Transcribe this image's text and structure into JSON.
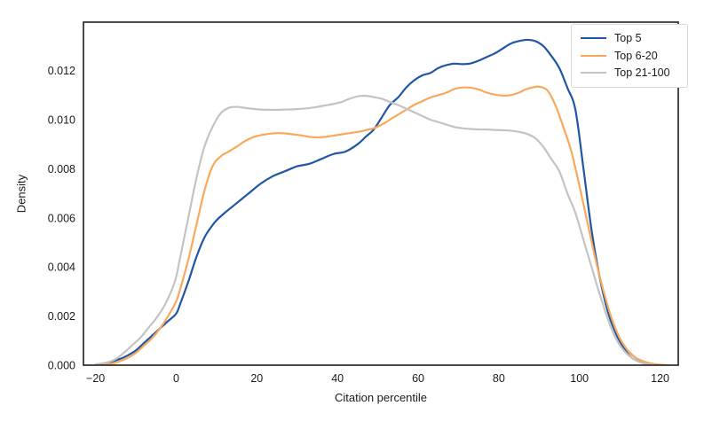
{
  "chart_data": {
    "type": "line",
    "subtype": "density-kde",
    "title": "",
    "xlabel": "Citation percentile",
    "ylabel": "Density",
    "grid": false,
    "legend_position": "upper right",
    "xlim": [
      -23,
      124.5
    ],
    "ylim": [
      0,
      0.01397
    ],
    "x_ticks": [
      -20,
      0,
      20,
      40,
      60,
      80,
      100,
      120
    ],
    "x_tick_labels": [
      "−20",
      "0",
      "20",
      "40",
      "60",
      "80",
      "100",
      "120"
    ],
    "y_ticks": [
      0,
      0.002,
      0.004,
      0.006,
      0.008,
      0.01,
      0.012
    ],
    "y_tick_labels": [
      "0.000",
      "0.002",
      "0.004",
      "0.006",
      "0.008",
      "0.010",
      "0.012"
    ],
    "axis_color": "#2b2b2b",
    "tick_text_color": "#1a1a1a",
    "series": [
      {
        "name": "Top 5",
        "color": "#2056a4",
        "points": [
          [
            -20,
            2e-05
          ],
          [
            -17,
            0.0001
          ],
          [
            -14,
            0.00025
          ],
          [
            -12,
            0.0004
          ],
          [
            -10,
            0.0006
          ],
          [
            -8,
            0.0009
          ],
          [
            -6,
            0.0012
          ],
          [
            -4,
            0.0015
          ],
          [
            -2,
            0.0018
          ],
          [
            0,
            0.0021
          ],
          [
            1,
            0.0025
          ],
          [
            3,
            0.0034
          ],
          [
            5,
            0.0044
          ],
          [
            7,
            0.0052
          ],
          [
            9,
            0.0057
          ],
          [
            10,
            0.0059
          ],
          [
            12,
            0.0062
          ],
          [
            15,
            0.0066
          ],
          [
            18,
            0.007
          ],
          [
            21,
            0.0074
          ],
          [
            24,
            0.0077
          ],
          [
            27,
            0.0079
          ],
          [
            30,
            0.0081
          ],
          [
            33,
            0.0082
          ],
          [
            36,
            0.0084
          ],
          [
            39,
            0.0086
          ],
          [
            42,
            0.0087
          ],
          [
            45,
            0.009
          ],
          [
            47,
            0.0093
          ],
          [
            49,
            0.0096
          ],
          [
            51,
            0.0101
          ],
          [
            53,
            0.0106
          ],
          [
            55,
            0.0109
          ],
          [
            57,
            0.0113
          ],
          [
            59,
            0.0116
          ],
          [
            61,
            0.0118
          ],
          [
            63,
            0.0119
          ],
          [
            65,
            0.0121
          ],
          [
            67,
            0.01222
          ],
          [
            69,
            0.01228
          ],
          [
            71,
            0.01226
          ],
          [
            73,
            0.01229
          ],
          [
            75,
            0.0124
          ],
          [
            77,
            0.01255
          ],
          [
            79,
            0.0127
          ],
          [
            81,
            0.0129
          ],
          [
            83,
            0.0131
          ],
          [
            85,
            0.0132
          ],
          [
            87,
            0.01325
          ],
          [
            89,
            0.0132
          ],
          [
            91,
            0.013
          ],
          [
            93,
            0.0126
          ],
          [
            95,
            0.0121
          ],
          [
            97,
            0.0113
          ],
          [
            99,
            0.0104
          ],
          [
            101,
            0.008
          ],
          [
            103,
            0.0055
          ],
          [
            105,
            0.0036
          ],
          [
            107,
            0.0022
          ],
          [
            109,
            0.0013
          ],
          [
            111,
            0.0007
          ],
          [
            113,
            0.0003
          ],
          [
            115,
            0.00015
          ],
          [
            117,
            5e-05
          ],
          [
            119,
            2e-05
          ],
          [
            121,
            0
          ]
        ]
      },
      {
        "name": "Top 6-20",
        "color": "#f9a85c",
        "points": [
          [
            -18,
            2e-05
          ],
          [
            -15,
            0.0001
          ],
          [
            -12,
            0.0003
          ],
          [
            -10,
            0.0005
          ],
          [
            -8,
            0.0008
          ],
          [
            -6,
            0.0011
          ],
          [
            -4,
            0.0015
          ],
          [
            -2,
            0.002
          ],
          [
            0,
            0.0026
          ],
          [
            1,
            0.0031
          ],
          [
            3,
            0.0043
          ],
          [
            5,
            0.0057
          ],
          [
            7,
            0.0071
          ],
          [
            9,
            0.0081
          ],
          [
            11,
            0.0085
          ],
          [
            13,
            0.0087
          ],
          [
            15,
            0.0089
          ],
          [
            17,
            0.00912
          ],
          [
            19,
            0.00928
          ],
          [
            21,
            0.00937
          ],
          [
            23,
            0.00942
          ],
          [
            25,
            0.00945
          ],
          [
            27,
            0.00944
          ],
          [
            29,
            0.0094
          ],
          [
            31,
            0.00936
          ],
          [
            33,
            0.0093
          ],
          [
            35,
            0.00928
          ],
          [
            37,
            0.0093
          ],
          [
            39,
            0.00935
          ],
          [
            41,
            0.0094
          ],
          [
            43,
            0.00945
          ],
          [
            45,
            0.0095
          ],
          [
            47,
            0.00957
          ],
          [
            49,
            0.00965
          ],
          [
            51,
            0.0098
          ],
          [
            53,
            0.01
          ],
          [
            55,
            0.0102
          ],
          [
            57,
            0.0104
          ],
          [
            59,
            0.0106
          ],
          [
            61,
            0.01075
          ],
          [
            63,
            0.0109
          ],
          [
            65,
            0.011
          ],
          [
            67,
            0.0111
          ],
          [
            69,
            0.01125
          ],
          [
            71,
            0.01131
          ],
          [
            73,
            0.0113
          ],
          [
            75,
            0.01123
          ],
          [
            77,
            0.0111
          ],
          [
            79,
            0.01102
          ],
          [
            81,
            0.01098
          ],
          [
            83,
            0.011
          ],
          [
            85,
            0.0111
          ],
          [
            87,
            0.01125
          ],
          [
            89,
            0.01133
          ],
          [
            90,
            0.01134
          ],
          [
            92,
            0.0112
          ],
          [
            94,
            0.0106
          ],
          [
            96,
            0.0097
          ],
          [
            98,
            0.0087
          ],
          [
            100,
            0.0073
          ],
          [
            102,
            0.0058
          ],
          [
            104,
            0.0043
          ],
          [
            106,
            0.003
          ],
          [
            108,
            0.0019
          ],
          [
            110,
            0.0011
          ],
          [
            112,
            0.0006
          ],
          [
            114,
            0.0003
          ],
          [
            116,
            0.00015
          ],
          [
            118,
            6e-05
          ],
          [
            120,
            2e-05
          ],
          [
            122,
            0
          ]
        ]
      },
      {
        "name": "Top 21-100",
        "color": "#c3c3c3",
        "points": [
          [
            -20,
            3e-05
          ],
          [
            -17,
            0.00012
          ],
          [
            -15,
            0.00025
          ],
          [
            -13,
            0.0005
          ],
          [
            -11,
            0.0008
          ],
          [
            -9,
            0.0011
          ],
          [
            -7,
            0.0015
          ],
          [
            -5,
            0.0019
          ],
          [
            -3,
            0.0024
          ],
          [
            -1,
            0.0031
          ],
          [
            0,
            0.0036
          ],
          [
            1,
            0.0044
          ],
          [
            3,
            0.006
          ],
          [
            5,
            0.0076
          ],
          [
            7,
            0.0089
          ],
          [
            9,
            0.0097
          ],
          [
            11,
            0.01025
          ],
          [
            13,
            0.01048
          ],
          [
            15,
            0.01052
          ],
          [
            17,
            0.01048
          ],
          [
            19,
            0.01044
          ],
          [
            21,
            0.01041
          ],
          [
            23,
            0.0104
          ],
          [
            25,
            0.0104
          ],
          [
            27,
            0.01041
          ],
          [
            29,
            0.01042
          ],
          [
            31,
            0.01044
          ],
          [
            33,
            0.01047
          ],
          [
            35,
            0.01052
          ],
          [
            37,
            0.01058
          ],
          [
            39,
            0.01064
          ],
          [
            41,
            0.01072
          ],
          [
            43,
            0.01085
          ],
          [
            45,
            0.01095
          ],
          [
            47,
            0.01097
          ],
          [
            49,
            0.01092
          ],
          [
            51,
            0.01085
          ],
          [
            53,
            0.01072
          ],
          [
            55,
            0.0106
          ],
          [
            57,
            0.01045
          ],
          [
            59,
            0.0103
          ],
          [
            61,
            0.01015
          ],
          [
            63,
            0.01
          ],
          [
            65,
            0.0099
          ],
          [
            67,
            0.0098
          ],
          [
            69,
            0.0097
          ],
          [
            71,
            0.00965
          ],
          [
            73,
            0.00962
          ],
          [
            75,
            0.0096
          ],
          [
            77,
            0.0096
          ],
          [
            79,
            0.00958
          ],
          [
            81,
            0.00957
          ],
          [
            83,
            0.00955
          ],
          [
            85,
            0.0095
          ],
          [
            87,
            0.00942
          ],
          [
            89,
            0.00925
          ],
          [
            91,
            0.0089
          ],
          [
            93,
            0.0084
          ],
          [
            95,
            0.0079
          ],
          [
            97,
            0.007
          ],
          [
            99,
            0.0062
          ],
          [
            101,
            0.0051
          ],
          [
            103,
            0.004
          ],
          [
            105,
            0.0029
          ],
          [
            107,
            0.0019
          ],
          [
            109,
            0.0011
          ],
          [
            111,
            0.0006
          ],
          [
            113,
            0.0003
          ],
          [
            115,
            0.00012
          ],
          [
            117,
            4e-05
          ],
          [
            119,
            0
          ]
        ]
      }
    ]
  }
}
